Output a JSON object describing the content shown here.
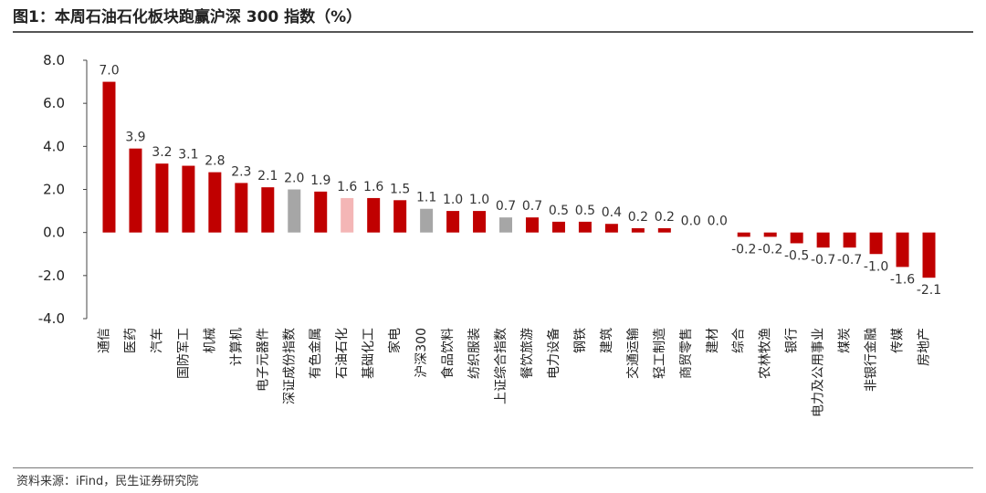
{
  "title": "图1：本周石油石化板块跑赢沪深 300 指数（%）",
  "source": "资料来源：iFind，民生证券研究院",
  "colors": {
    "default": "#c00000",
    "index": "#a6a6a6",
    "highlight": "#f4b6b6"
  },
  "chart_data": {
    "type": "bar",
    "title": "图1：本周石油石化板块跑赢沪深 300 指数（%）",
    "xlabel": "",
    "ylabel": "",
    "ylim": [
      -4.0,
      8.0
    ],
    "yticks": [
      "8.0",
      "6.0",
      "4.0",
      "2.0",
      "0.0",
      "-2.0",
      "-4.0"
    ],
    "ytick_values": [
      8,
      6,
      4,
      2,
      0,
      -2,
      -4
    ],
    "grid": false,
    "categories": [
      "通信",
      "医药",
      "汽车",
      "国防军工",
      "机械",
      "计算机",
      "电子元器件",
      "深证成份指数",
      "有色金属",
      "石油石化",
      "基础化工",
      "家电",
      "沪深300",
      "食品饮料",
      "纺织服装",
      "上证综合指数",
      "餐饮旅游",
      "电力设备",
      "钢铁",
      "建筑",
      "交通运输",
      "轻工制造",
      "商贸零售",
      "建材",
      "综合",
      "农林牧渔",
      "银行",
      "电力及公用事业",
      "煤炭",
      "非银行金融",
      "传媒",
      "房地产"
    ],
    "values": [
      7.0,
      3.9,
      3.2,
      3.1,
      2.8,
      2.3,
      2.1,
      2.0,
      1.9,
      1.6,
      1.6,
      1.5,
      1.1,
      1.0,
      1.0,
      0.7,
      0.7,
      0.5,
      0.5,
      0.4,
      0.2,
      0.2,
      0.0,
      0.0,
      -0.2,
      -0.2,
      -0.5,
      -0.7,
      -0.7,
      -1.0,
      -1.6,
      -2.1
    ],
    "data_labels": [
      "7.0",
      "3.9",
      "3.2",
      "3.1",
      "2.8",
      "2.3",
      "2.1",
      "2.0",
      "1.9",
      "1.6",
      "1.6",
      "1.5",
      "1.1",
      "1.0",
      "1.0",
      "0.7",
      "0.7",
      "0.5",
      "0.5",
      "0.4",
      "0.2",
      "0.2",
      "0.0",
      "0.0",
      "-0.2",
      "-0.2",
      "-0.5",
      "-0.7",
      "-0.7",
      "-1.0",
      "-1.6",
      "-2.1"
    ],
    "bar_colors": [
      "default",
      "default",
      "default",
      "default",
      "default",
      "default",
      "default",
      "index",
      "default",
      "highlight",
      "default",
      "default",
      "index",
      "default",
      "default",
      "index",
      "default",
      "default",
      "default",
      "default",
      "default",
      "default",
      "default",
      "default",
      "default",
      "default",
      "default",
      "default",
      "default",
      "default",
      "default",
      "default"
    ]
  }
}
